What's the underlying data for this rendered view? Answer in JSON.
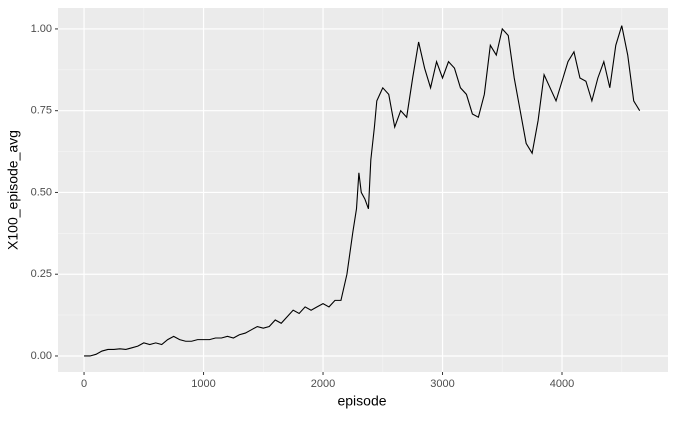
{
  "chart_data": {
    "type": "line",
    "x_label": "episode",
    "y_label": "X100_episode_avg",
    "x": [
      0,
      50,
      100,
      150,
      200,
      250,
      300,
      350,
      400,
      450,
      500,
      550,
      600,
      650,
      700,
      750,
      800,
      850,
      900,
      950,
      1000,
      1050,
      1100,
      1150,
      1200,
      1250,
      1300,
      1350,
      1400,
      1450,
      1500,
      1550,
      1600,
      1650,
      1700,
      1750,
      1800,
      1850,
      1900,
      1950,
      2000,
      2050,
      2100,
      2150,
      2200,
      2250,
      2280,
      2300,
      2320,
      2350,
      2380,
      2400,
      2430,
      2450,
      2500,
      2550,
      2600,
      2650,
      2700,
      2750,
      2800,
      2850,
      2900,
      2950,
      3000,
      3050,
      3100,
      3150,
      3200,
      3250,
      3300,
      3350,
      3400,
      3450,
      3500,
      3550,
      3600,
      3650,
      3700,
      3750,
      3800,
      3850,
      3900,
      3950,
      4000,
      4050,
      4100,
      4150,
      4200,
      4250,
      4300,
      4350,
      4400,
      4450,
      4500,
      4550,
      4600,
      4650
    ],
    "series": [
      {
        "name": "X100_episode_avg",
        "color": "#000000",
        "values": [
          0,
          0,
          0.005,
          0.015,
          0.02,
          0.02,
          0.022,
          0.02,
          0.025,
          0.03,
          0.04,
          0.035,
          0.04,
          0.035,
          0.05,
          0.06,
          0.05,
          0.045,
          0.045,
          0.05,
          0.05,
          0.05,
          0.055,
          0.055,
          0.06,
          0.055,
          0.065,
          0.07,
          0.08,
          0.09,
          0.085,
          0.09,
          0.11,
          0.1,
          0.12,
          0.14,
          0.13,
          0.15,
          0.14,
          0.15,
          0.16,
          0.15,
          0.17,
          0.17,
          0.25,
          0.38,
          0.45,
          0.56,
          0.5,
          0.48,
          0.45,
          0.6,
          0.7,
          0.78,
          0.82,
          0.8,
          0.7,
          0.75,
          0.73,
          0.85,
          0.96,
          0.88,
          0.82,
          0.9,
          0.85,
          0.9,
          0.88,
          0.82,
          0.8,
          0.74,
          0.73,
          0.8,
          0.95,
          0.92,
          1.0,
          0.98,
          0.85,
          0.75,
          0.65,
          0.62,
          0.72,
          0.86,
          0.82,
          0.78,
          0.84,
          0.9,
          0.93,
          0.85,
          0.84,
          0.78,
          0.85,
          0.9,
          0.82,
          0.95,
          1.01,
          0.92,
          0.78,
          0.75
        ]
      }
    ],
    "xlim": [
      -218,
      4887
    ],
    "ylim": [
      -0.049,
      1.064
    ],
    "xticks": [
      0,
      1000,
      2000,
      3000,
      4000
    ],
    "yticks": [
      {
        "value": 0,
        "label": "0.00"
      },
      {
        "value": 0.25,
        "label": "0.25"
      },
      {
        "value": 0.5,
        "label": "0.50"
      },
      {
        "value": 0.75,
        "label": "0.75"
      },
      {
        "value": 1,
        "label": "1.00"
      }
    ],
    "x_minor_breaks": [
      500,
      1500,
      2500,
      3500,
      4500
    ],
    "y_minor_breaks": [
      0.125,
      0.375,
      0.625,
      0.875
    ],
    "grid": true
  }
}
